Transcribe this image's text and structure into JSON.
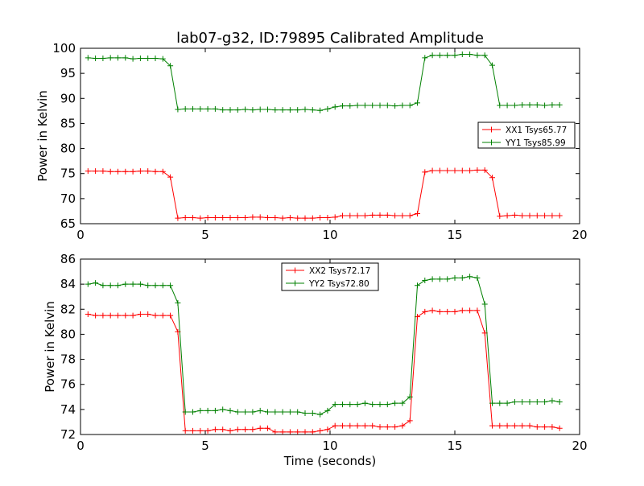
{
  "chart_data": [
    {
      "type": "line",
      "title": "lab07-g32, ID:79895 Calibrated Amplitude",
      "xlabel": "",
      "ylabel": "Power in Kelvin",
      "xlim": [
        0,
        20
      ],
      "ylim": [
        65,
        100
      ],
      "xticks": [
        "0",
        "5",
        "10",
        "15",
        "20"
      ],
      "yticks": [
        "65",
        "70",
        "75",
        "80",
        "85",
        "90",
        "95",
        "100"
      ],
      "grid": false,
      "legend_position": "center-right",
      "x": [
        0.3,
        0.6,
        0.9,
        1.2,
        1.5,
        1.8,
        2.1,
        2.4,
        2.7,
        3.0,
        3.3,
        3.6,
        3.9,
        4.2,
        4.5,
        4.8,
        5.1,
        5.4,
        5.7,
        6.0,
        6.3,
        6.6,
        6.9,
        7.2,
        7.5,
        7.8,
        8.1,
        8.4,
        8.7,
        9.0,
        9.3,
        9.6,
        9.9,
        10.2,
        10.5,
        10.8,
        11.1,
        11.4,
        11.7,
        12.0,
        12.3,
        12.6,
        12.9,
        13.2,
        13.5,
        13.8,
        14.1,
        14.4,
        14.7,
        15.0,
        15.3,
        15.6,
        15.9,
        16.2,
        16.5,
        16.8,
        17.1,
        17.4,
        17.7,
        18.0,
        18.3,
        18.6,
        18.9,
        19.2
      ],
      "series": [
        {
          "name": "XX1 Tsys65.77",
          "color": "#ff0000",
          "values": [
            75.5,
            75.5,
            75.5,
            75.4,
            75.4,
            75.4,
            75.4,
            75.5,
            75.5,
            75.4,
            75.4,
            74.3,
            66.1,
            66.2,
            66.2,
            66.1,
            66.2,
            66.2,
            66.2,
            66.2,
            66.2,
            66.2,
            66.3,
            66.3,
            66.2,
            66.2,
            66.1,
            66.2,
            66.1,
            66.1,
            66.1,
            66.2,
            66.2,
            66.3,
            66.6,
            66.6,
            66.6,
            66.6,
            66.7,
            66.7,
            66.7,
            66.6,
            66.6,
            66.6,
            67.0,
            75.3,
            75.6,
            75.6,
            75.6,
            75.6,
            75.6,
            75.6,
            75.7,
            75.7,
            74.2,
            66.5,
            66.6,
            66.7,
            66.6,
            66.6,
            66.6,
            66.6,
            66.6,
            66.6
          ]
        },
        {
          "name": "YY1 Tsys85.99",
          "color": "#008000",
          "values": [
            98.1,
            98.0,
            98.0,
            98.1,
            98.1,
            98.1,
            97.9,
            98.0,
            98.0,
            98.0,
            97.9,
            96.5,
            87.8,
            87.9,
            87.9,
            87.9,
            87.9,
            87.9,
            87.7,
            87.7,
            87.7,
            87.8,
            87.7,
            87.8,
            87.8,
            87.7,
            87.7,
            87.7,
            87.7,
            87.8,
            87.7,
            87.6,
            87.9,
            88.3,
            88.5,
            88.5,
            88.6,
            88.6,
            88.6,
            88.6,
            88.6,
            88.5,
            88.6,
            88.6,
            89.1,
            98.1,
            98.6,
            98.6,
            98.6,
            98.6,
            98.8,
            98.8,
            98.6,
            98.6,
            96.6,
            88.6,
            88.6,
            88.6,
            88.7,
            88.7,
            88.7,
            88.6,
            88.7,
            88.7
          ]
        }
      ]
    },
    {
      "type": "line",
      "title": "",
      "xlabel": "Time (seconds)",
      "ylabel": "Power in Kelvin",
      "xlim": [
        0,
        20
      ],
      "ylim": [
        72,
        86
      ],
      "xticks": [
        "0",
        "5",
        "10",
        "15",
        "20"
      ],
      "yticks": [
        "72",
        "74",
        "76",
        "78",
        "80",
        "82",
        "84",
        "86"
      ],
      "grid": false,
      "legend_position": "top-center",
      "x": [
        0.3,
        0.6,
        0.9,
        1.2,
        1.5,
        1.8,
        2.1,
        2.4,
        2.7,
        3.0,
        3.3,
        3.6,
        3.9,
        4.2,
        4.5,
        4.8,
        5.1,
        5.4,
        5.7,
        6.0,
        6.3,
        6.6,
        6.9,
        7.2,
        7.5,
        7.8,
        8.1,
        8.4,
        8.7,
        9.0,
        9.3,
        9.6,
        9.9,
        10.2,
        10.5,
        10.8,
        11.1,
        11.4,
        11.7,
        12.0,
        12.3,
        12.6,
        12.9,
        13.2,
        13.5,
        13.8,
        14.1,
        14.4,
        14.7,
        15.0,
        15.3,
        15.6,
        15.9,
        16.2,
        16.5,
        16.8,
        17.1,
        17.4,
        17.7,
        18.0,
        18.3,
        18.6,
        18.9,
        19.2
      ],
      "series": [
        {
          "name": "XX2 Tsys72.17",
          "color": "#ff0000",
          "values": [
            81.6,
            81.5,
            81.5,
            81.5,
            81.5,
            81.5,
            81.5,
            81.6,
            81.6,
            81.5,
            81.5,
            81.5,
            80.2,
            72.3,
            72.3,
            72.3,
            72.3,
            72.4,
            72.4,
            72.3,
            72.4,
            72.4,
            72.4,
            72.5,
            72.5,
            72.2,
            72.2,
            72.2,
            72.2,
            72.2,
            72.2,
            72.3,
            72.4,
            72.7,
            72.7,
            72.7,
            72.7,
            72.7,
            72.7,
            72.6,
            72.6,
            72.6,
            72.7,
            73.1,
            81.4,
            81.8,
            81.9,
            81.8,
            81.8,
            81.8,
            81.9,
            81.9,
            81.9,
            80.1,
            72.7,
            72.7,
            72.7,
            72.7,
            72.7,
            72.7,
            72.6,
            72.6,
            72.6,
            72.5
          ]
        },
        {
          "name": "YY2 Tsys72.80",
          "color": "#008000",
          "values": [
            84.0,
            84.1,
            83.9,
            83.9,
            83.9,
            84.0,
            84.0,
            84.0,
            83.9,
            83.9,
            83.9,
            83.9,
            82.5,
            73.8,
            73.8,
            73.9,
            73.9,
            73.9,
            74.0,
            73.9,
            73.8,
            73.8,
            73.8,
            73.9,
            73.8,
            73.8,
            73.8,
            73.8,
            73.8,
            73.7,
            73.7,
            73.6,
            73.9,
            74.4,
            74.4,
            74.4,
            74.4,
            74.5,
            74.4,
            74.4,
            74.4,
            74.5,
            74.5,
            75.0,
            83.9,
            84.3,
            84.4,
            84.4,
            84.4,
            84.5,
            84.5,
            84.6,
            84.5,
            82.4,
            74.5,
            74.5,
            74.5,
            74.6,
            74.6,
            74.6,
            74.6,
            74.6,
            74.7,
            74.6
          ]
        }
      ]
    }
  ]
}
